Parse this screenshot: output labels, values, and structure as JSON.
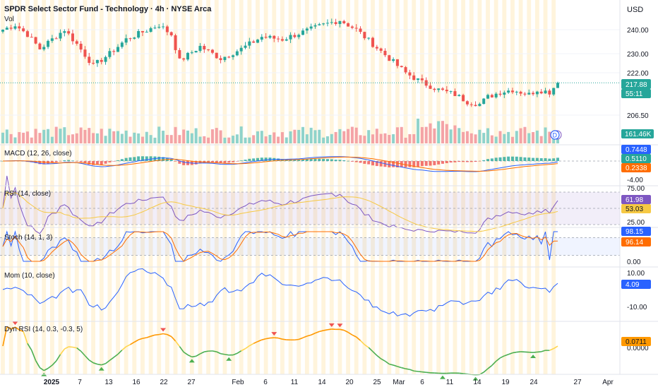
{
  "header": {
    "symbol": "SPDR Select Sector Fund - Technology · 4h · NYSE Arca",
    "vol_label": "Vol",
    "currency": "USD"
  },
  "colors": {
    "up": "#26a69a",
    "down": "#ef5350",
    "vol_up": "#8fd3cb",
    "vol_down": "#f4a3a6",
    "macd_line": "#2962ff",
    "signal_line": "#ff6d00",
    "rsi_line": "#7e57c2",
    "rsi_ma": "#f6c944",
    "stoch_k": "#2962ff",
    "stoch_d": "#ff6d00",
    "mom_line": "#2962ff",
    "dyn_up": "#ff9800",
    "dyn_mid": "#ffd54f",
    "dyn_down": "#4caf50",
    "session_band": "#fff4dc"
  },
  "chart_data": [
    {
      "type": "candlestick",
      "title": "SPDR Select Sector Fund - Technology · 4h · NYSE Arca",
      "ylabel": "USD",
      "ylim": [
        200,
        246
      ],
      "y_ticks": [
        "240.00",
        "230.00",
        "222.00",
        "206.50"
      ],
      "x_ticks": [
        "2025",
        "7",
        "13",
        "16",
        "22",
        "27",
        "Feb",
        "6",
        "11",
        "14",
        "20",
        "25",
        "Mar",
        "6",
        "11",
        "14",
        "19",
        "24",
        "27",
        "Apr"
      ],
      "last_price": "217.88",
      "countdown": "55:11",
      "close_anchors": [
        [
          0,
          240.0
        ],
        [
          3,
          242.0
        ],
        [
          6,
          238.0
        ],
        [
          9,
          232.0
        ],
        [
          12,
          236.0
        ],
        [
          15,
          240.0
        ],
        [
          18,
          234.0
        ],
        [
          22,
          225.0
        ],
        [
          26,
          230.0
        ],
        [
          30,
          236.0
        ],
        [
          34,
          239.0
        ],
        [
          38,
          242.0
        ],
        [
          41,
          238.0
        ],
        [
          43,
          227.0
        ],
        [
          48,
          233.0
        ],
        [
          53,
          228.0
        ],
        [
          58,
          232.0
        ],
        [
          63,
          237.0
        ],
        [
          68,
          236.0
        ],
        [
          73,
          239.0
        ],
        [
          78,
          242.0
        ],
        [
          82,
          244.0
        ],
        [
          86,
          240.0
        ],
        [
          90,
          234.0
        ],
        [
          94,
          228.0
        ],
        [
          98,
          222.0
        ],
        [
          102,
          218.0
        ],
        [
          106,
          215.0
        ],
        [
          110,
          213.0
        ],
        [
          113,
          210.0
        ],
        [
          116,
          209.0
        ],
        [
          118,
          212.0
        ],
        [
          121,
          214.0
        ],
        [
          124,
          215.0
        ],
        [
          128,
          213.0
        ],
        [
          130,
          215.0
        ],
        [
          133,
          214.0
        ],
        [
          135,
          217.88
        ]
      ]
    },
    {
      "type": "bar",
      "title": "Vol",
      "last_value": "161.46K"
    },
    {
      "type": "line",
      "title": "MACD (12, 26, close)",
      "y_ticks": [
        "-4.00"
      ],
      "values": {
        "macd": "0.7448",
        "signal": "0.5110",
        "histogram": "0.2338"
      }
    },
    {
      "type": "line",
      "title": "RSI (14, close)",
      "ylim": [
        0,
        100
      ],
      "y_ticks": [
        "75.00",
        "25.00"
      ],
      "values": {
        "rsi": "61.98",
        "rsi_ma": "53.03"
      }
    },
    {
      "type": "line",
      "title": "Stoch (14, 1, 3)",
      "ylim": [
        0,
        100
      ],
      "y_ticks": [
        "0.00"
      ],
      "values": {
        "k": "98.15",
        "d": "96.14"
      }
    },
    {
      "type": "line",
      "title": "Mom (10, close)",
      "y_ticks": [
        "10.00",
        "-10.00"
      ],
      "values": {
        "mom": "4.09"
      }
    },
    {
      "type": "line",
      "title": "Dyn RSI (14, 0.3, -0.3, 5)",
      "y_ticks": [
        "0.0000"
      ],
      "values": {
        "dyn": "0.0711"
      }
    }
  ]
}
